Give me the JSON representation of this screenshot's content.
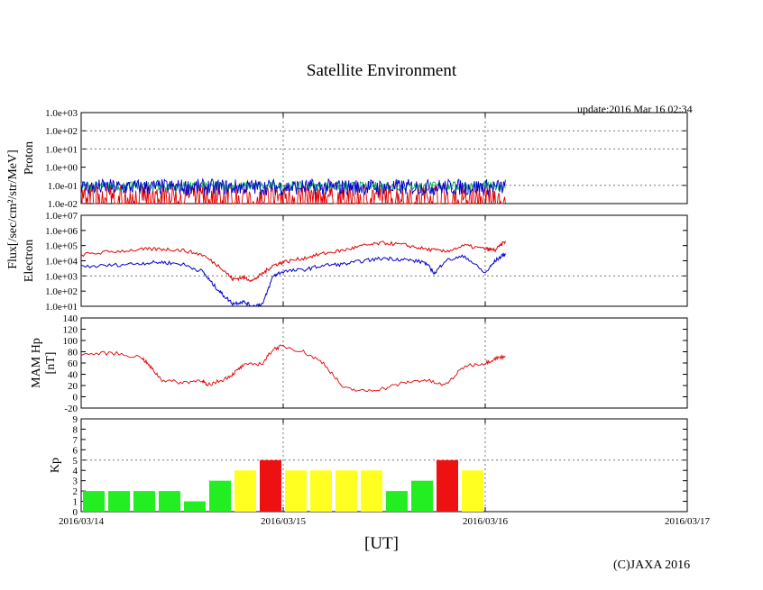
{
  "page": {
    "title": "Satellite Environment",
    "update": "update:2016 Mar 16 02:34",
    "x_unit_label": "[UT]",
    "copyright": "(C)JAXA 2016",
    "shared_ylabel": "Flux[/sec/cm²/str/MeV]"
  },
  "colors": {
    "red": "#e00000",
    "blue": "#0000cc",
    "green": "#00b050",
    "bar_green": "#22ee22",
    "bar_yellow": "#ffff22",
    "bar_red": "#ee1111"
  },
  "chart_data": [
    {
      "type": "line",
      "name": "proton",
      "ylabel": "Proton",
      "yscale": "log",
      "ylim": [
        0.01,
        1000
      ],
      "yticks": [
        "1.0e-02",
        "1.0e-01",
        "1.0e+00",
        "1.0e+01",
        "1.0e+02",
        "1.0e+03"
      ],
      "xlim": [
        0,
        3
      ],
      "data_end": 2.1,
      "series": [
        {
          "name": "proton-red",
          "color": "#e00000",
          "level": 0.03,
          "spread": 0.6
        },
        {
          "name": "proton-green",
          "color": "#00b050",
          "level": 0.09,
          "spread": 0.25
        },
        {
          "name": "proton-blue",
          "color": "#0000cc",
          "level": 0.08,
          "spread": 0.45
        }
      ]
    },
    {
      "type": "line",
      "name": "electron",
      "ylabel": "Electron",
      "yscale": "log",
      "ylim": [
        10,
        10000000
      ],
      "yticks": [
        "1.0e+01",
        "1.0e+02",
        "1.0e+03",
        "1.0e+04",
        "1.0e+05",
        "1.0e+06",
        "1.0e+07"
      ],
      "xlim": [
        0,
        3
      ],
      "series": [
        {
          "name": "electron-red",
          "color": "#e00000",
          "x": [
            0,
            0.15,
            0.3,
            0.4,
            0.5,
            0.6,
            0.7,
            0.75,
            0.8,
            0.85,
            0.9,
            0.95,
            1.0,
            1.1,
            1.2,
            1.3,
            1.4,
            1.5,
            1.6,
            1.7,
            1.8,
            1.9,
            2.0,
            2.05,
            2.1
          ],
          "y": [
            25000,
            40000,
            55000,
            60000,
            50000,
            25000,
            3000,
            600,
            800,
            500,
            1500,
            5000,
            8000,
            15000,
            30000,
            50000,
            100000,
            150000,
            110000,
            60000,
            40000,
            100000,
            60000,
            50000,
            200000
          ]
        },
        {
          "name": "electron-blue",
          "color": "#0000cc",
          "x": [
            0,
            0.15,
            0.3,
            0.4,
            0.5,
            0.6,
            0.65,
            0.7,
            0.75,
            0.8,
            0.85,
            0.9,
            0.95,
            1.0,
            1.1,
            1.2,
            1.3,
            1.4,
            1.5,
            1.6,
            1.7,
            1.75,
            1.8,
            1.9,
            2.0,
            2.05,
            2.1
          ],
          "y": [
            4000,
            5000,
            7000,
            8000,
            6000,
            2000,
            300,
            60,
            15,
            20,
            10,
            15,
            1000,
            2000,
            2500,
            5000,
            6000,
            10000,
            15000,
            12000,
            8000,
            1500,
            10000,
            20000,
            1500,
            10000,
            30000
          ]
        }
      ]
    },
    {
      "type": "line",
      "name": "mam-hp",
      "ylabel": "MAM Hp",
      "ylabel2": "[nT]",
      "ylim": [
        -20,
        140
      ],
      "yticks": [
        "-20",
        "0",
        "20",
        "40",
        "60",
        "80",
        "100",
        "120",
        "140"
      ],
      "xlim": [
        0,
        3
      ],
      "series": [
        {
          "name": "mam-hp-line",
          "color": "#e00000",
          "x": [
            0,
            0.15,
            0.3,
            0.35,
            0.4,
            0.5,
            0.6,
            0.62,
            0.7,
            0.75,
            0.8,
            0.9,
            0.95,
            1.0,
            1.1,
            1.2,
            1.3,
            1.4,
            1.5,
            1.6,
            1.7,
            1.8,
            1.9,
            2.0,
            2.05,
            2.1
          ],
          "y": [
            75,
            78,
            70,
            50,
            30,
            25,
            30,
            20,
            30,
            40,
            55,
            60,
            85,
            90,
            80,
            60,
            15,
            10,
            15,
            25,
            30,
            20,
            55,
            60,
            68,
            72
          ]
        }
      ]
    },
    {
      "type": "bar",
      "name": "kp",
      "ylabel": "Kp",
      "ylim": [
        0,
        9
      ],
      "yticks": [
        "0",
        "1",
        "2",
        "3",
        "4",
        "5",
        "6",
        "7",
        "8",
        "9"
      ],
      "xlim": [
        0,
        3
      ],
      "bar_width": 0.125,
      "values": [
        2,
        2,
        2,
        2,
        1,
        3,
        4,
        5,
        4,
        4,
        4,
        4,
        2,
        3,
        5,
        4
      ],
      "colors": [
        "green",
        "green",
        "green",
        "green",
        "green",
        "green",
        "yellow",
        "red",
        "yellow",
        "yellow",
        "yellow",
        "yellow",
        "green",
        "green",
        "red",
        "yellow"
      ]
    }
  ],
  "x_axis": {
    "ticks": [
      "2016/03/14",
      "2016/03/15",
      "2016/03/16",
      "2016/03/17"
    ]
  }
}
